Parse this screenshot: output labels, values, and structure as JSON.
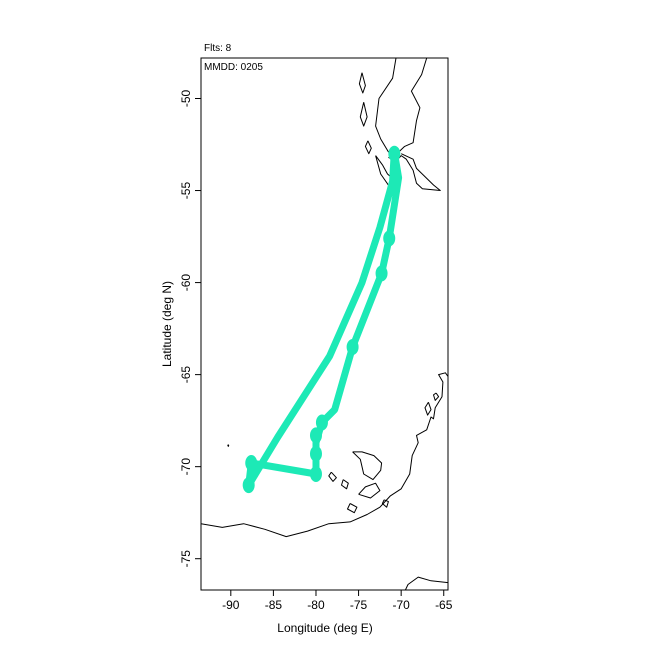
{
  "header": {
    "flights_label": "Flts: 8",
    "date_label": "MMDD: 0205"
  },
  "chart_data": {
    "type": "map",
    "xlabel": "Longitude (deg E)",
    "ylabel": "Latitude (deg N)",
    "xlim": [
      -93.5,
      -64.5
    ],
    "ylim": [
      -76.7,
      -47.8
    ],
    "x_ticks": [
      -90,
      -85,
      -80,
      -75,
      -70,
      -65
    ],
    "y_ticks": [
      -50,
      -55,
      -60,
      -65,
      -70,
      -75
    ],
    "track_color": "#1de9b6",
    "coast_color": "#000000",
    "track": [
      [
        -70.8,
        -52.9
      ],
      [
        -70.3,
        -54.3
      ],
      [
        -71.4,
        -57.6
      ],
      [
        -72.3,
        -59.5
      ],
      [
        -75.7,
        -63.5
      ],
      [
        -77.8,
        -66.9
      ],
      [
        -79.3,
        -67.6
      ],
      [
        -80.0,
        -68.7
      ],
      [
        -80.0,
        -70.4
      ],
      [
        -87.6,
        -69.8
      ],
      [
        -87.9,
        -71.0
      ],
      [
        -84.5,
        -68.4
      ],
      [
        -78.4,
        -64.0
      ],
      [
        -74.6,
        -60.0
      ],
      [
        -72.5,
        -57.0
      ],
      [
        -71.0,
        -54.5
      ],
      [
        -70.8,
        -52.9
      ]
    ],
    "markers": [
      [
        -71.4,
        -57.6
      ],
      [
        -72.3,
        -59.5
      ],
      [
        -75.7,
        -63.5
      ],
      [
        -79.3,
        -67.6
      ],
      [
        -80.0,
        -68.3
      ],
      [
        -80.0,
        -69.3
      ],
      [
        -80.0,
        -70.4
      ],
      [
        -87.6,
        -69.8
      ],
      [
        -87.9,
        -71.0
      ],
      [
        -70.8,
        -53.0
      ]
    ],
    "coastlines": [
      [
        [
          -70.6,
          -47.8
        ],
        [
          -71.0,
          -48.9
        ],
        [
          -72.6,
          -50.0
        ],
        [
          -73.0,
          -51.5
        ],
        [
          -72.4,
          -52.2
        ],
        [
          -71.5,
          -52.9
        ],
        [
          -70.5,
          -53.0
        ],
        [
          -69.6,
          -52.6
        ],
        [
          -68.6,
          -52.4
        ],
        [
          -68.2,
          -51.2
        ],
        [
          -67.8,
          -50.5
        ],
        [
          -68.8,
          -49.6
        ],
        [
          -67.6,
          -48.7
        ],
        [
          -67.0,
          -47.8
        ]
      ],
      [
        [
          -71.5,
          -53.2
        ],
        [
          -70.6,
          -53.4
        ],
        [
          -70.0,
          -53.1
        ],
        [
          -69.4,
          -53.3
        ],
        [
          -68.6,
          -53.9
        ],
        [
          -68.2,
          -54.6
        ],
        [
          -67.5,
          -54.9
        ],
        [
          -65.4,
          -55.0
        ],
        [
          -66.2,
          -54.7
        ],
        [
          -68.2,
          -53.8
        ],
        [
          -68.6,
          -53.3
        ],
        [
          -70.0,
          -53.0
        ]
      ],
      [
        [
          -73.0,
          -53.1
        ],
        [
          -72.2,
          -53.6
        ],
        [
          -71.6,
          -54.1
        ],
        [
          -70.6,
          -54.5
        ],
        [
          -71.2,
          -54.9
        ],
        [
          -72.4,
          -54.1
        ],
        [
          -73.0,
          -53.1
        ]
      ],
      [
        [
          -74.4,
          -50.2
        ],
        [
          -74.0,
          -51.0
        ],
        [
          -74.4,
          -51.5
        ],
        [
          -74.8,
          -51.0
        ],
        [
          -74.4,
          -50.2
        ]
      ],
      [
        [
          -74.6,
          -48.6
        ],
        [
          -74.2,
          -49.3
        ],
        [
          -74.5,
          -49.7
        ],
        [
          -74.9,
          -49.2
        ],
        [
          -74.6,
          -48.6
        ]
      ],
      [
        [
          -73.9,
          -52.3
        ],
        [
          -73.5,
          -52.7
        ],
        [
          -73.8,
          -53.0
        ],
        [
          -74.2,
          -52.6
        ],
        [
          -73.9,
          -52.3
        ]
      ],
      [
        [
          -93.5,
          -73.1
        ],
        [
          -91.0,
          -73.3
        ],
        [
          -88.5,
          -73.1
        ],
        [
          -86.0,
          -73.4
        ],
        [
          -83.5,
          -73.8
        ],
        [
          -81.0,
          -73.5
        ],
        [
          -78.5,
          -73.1
        ],
        [
          -76.0,
          -73.0
        ],
        [
          -74.0,
          -72.6
        ],
        [
          -72.5,
          -72.2
        ],
        [
          -71.3,
          -71.6
        ],
        [
          -70.0,
          -71.2
        ],
        [
          -69.0,
          -70.4
        ],
        [
          -68.7,
          -69.4
        ],
        [
          -68.3,
          -69.0
        ],
        [
          -68.0,
          -68.7
        ],
        [
          -68.2,
          -68.3
        ],
        [
          -67.0,
          -68.0
        ],
        [
          -66.5,
          -67.3
        ],
        [
          -66.2,
          -67.4
        ],
        [
          -66.0,
          -66.8
        ],
        [
          -65.2,
          -66.2
        ],
        [
          -65.1,
          -65.4
        ],
        [
          -65.6,
          -65.0
        ],
        [
          -64.8,
          -64.9
        ],
        [
          -64.5,
          -65.1
        ]
      ],
      [
        [
          -75.7,
          -69.2
        ],
        [
          -74.8,
          -69.6
        ],
        [
          -74.4,
          -70.4
        ],
        [
          -73.3,
          -70.7
        ],
        [
          -72.4,
          -70.2
        ],
        [
          -72.3,
          -69.8
        ],
        [
          -73.2,
          -69.4
        ],
        [
          -74.6,
          -69.2
        ],
        [
          -75.7,
          -69.2
        ]
      ],
      [
        [
          -75.0,
          -71.5
        ],
        [
          -73.6,
          -71.7
        ],
        [
          -72.5,
          -71.3
        ],
        [
          -73.0,
          -70.9
        ],
        [
          -74.2,
          -71.1
        ],
        [
          -75.0,
          -71.5
        ]
      ],
      [
        [
          -76.8,
          -70.7
        ],
        [
          -76.2,
          -70.9
        ],
        [
          -76.4,
          -71.2
        ],
        [
          -77.0,
          -71.0
        ],
        [
          -76.8,
          -70.7
        ]
      ],
      [
        [
          -78.2,
          -70.3
        ],
        [
          -77.6,
          -70.6
        ],
        [
          -78.0,
          -70.8
        ],
        [
          -78.5,
          -70.5
        ],
        [
          -78.2,
          -70.3
        ]
      ],
      [
        [
          -76.0,
          -72.0
        ],
        [
          -75.2,
          -72.2
        ],
        [
          -75.5,
          -72.5
        ],
        [
          -76.3,
          -72.3
        ],
        [
          -76.0,
          -72.0
        ]
      ],
      [
        [
          -72.0,
          -71.8
        ],
        [
          -71.5,
          -71.9
        ],
        [
          -71.7,
          -72.2
        ],
        [
          -72.2,
          -72.0
        ],
        [
          -72.0,
          -71.8
        ]
      ],
      [
        [
          -66.8,
          -66.5
        ],
        [
          -66.5,
          -66.9
        ],
        [
          -66.9,
          -67.2
        ],
        [
          -67.2,
          -66.8
        ],
        [
          -66.8,
          -66.5
        ]
      ],
      [
        [
          -65.9,
          -66.0
        ],
        [
          -65.6,
          -66.2
        ],
        [
          -66.0,
          -66.4
        ],
        [
          -66.2,
          -66.1
        ],
        [
          -65.9,
          -66.0
        ]
      ],
      [
        [
          -90.3,
          -68.8
        ],
        [
          -90.25,
          -68.85
        ],
        [
          -90.3,
          -68.9
        ],
        [
          -90.35,
          -68.85
        ],
        [
          -90.3,
          -68.8
        ]
      ],
      [
        [
          -64.5,
          -76.3
        ],
        [
          -66.5,
          -76.2
        ],
        [
          -68.0,
          -76.0
        ],
        [
          -69.2,
          -76.4
        ],
        [
          -69.5,
          -76.7
        ]
      ]
    ]
  }
}
